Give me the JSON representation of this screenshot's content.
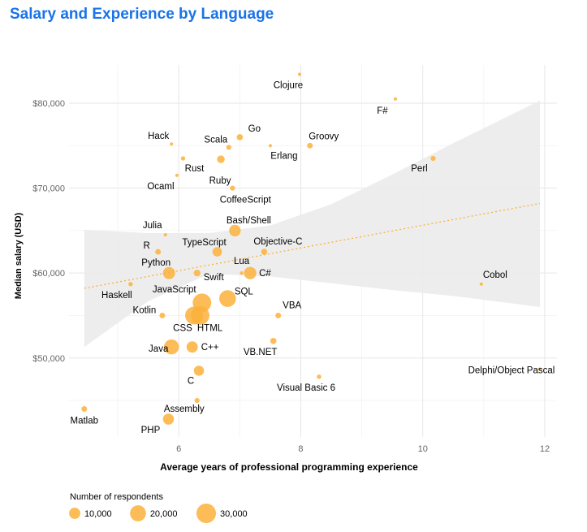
{
  "colors": {
    "title": "#1a73e8",
    "point": "#fbb03b",
    "trend": "#fbb03b",
    "band": "#ebebeb",
    "grid": "#e6e6e6",
    "axis_text": "#666666"
  },
  "chart_data": {
    "type": "scatter",
    "title": "Salary and Experience by Language",
    "xlabel": "Average years of professional programming experience",
    "ylabel": "Median salary (USD)",
    "xlim": [
      4.2,
      12.2
    ],
    "ylim": [
      40700,
      84500
    ],
    "x_ticks": [
      {
        "value": 6,
        "label": "6"
      },
      {
        "value": 8,
        "label": "8"
      },
      {
        "value": 10,
        "label": "10"
      },
      {
        "value": 12,
        "label": "12"
      }
    ],
    "y_ticks": [
      {
        "value": 50000,
        "label": "$50,000"
      },
      {
        "value": 60000,
        "label": "$60,000"
      },
      {
        "value": 70000,
        "label": "$70,000"
      },
      {
        "value": 80000,
        "label": "$80,000"
      }
    ],
    "grid": true,
    "trend": {
      "x": [
        4.45,
        11.92
      ],
      "y": [
        58200,
        68200
      ]
    },
    "band_upper": [
      [
        4.45,
        65100
      ],
      [
        5.5,
        64700
      ],
      [
        6.5,
        64700
      ],
      [
        7.5,
        65600
      ],
      [
        8.5,
        68100
      ],
      [
        9.5,
        71600
      ],
      [
        10.5,
        75300
      ],
      [
        11.92,
        80300
      ]
    ],
    "band_lower": [
      [
        4.45,
        51300
      ],
      [
        5.5,
        56700
      ],
      [
        6.5,
        59900
      ],
      [
        7.5,
        59600
      ],
      [
        8.5,
        58800
      ],
      [
        9.5,
        58000
      ],
      [
        10.5,
        57300
      ],
      [
        11.92,
        56000
      ]
    ],
    "points": [
      {
        "name": "Clojure",
        "x": 7.98,
        "y": 83400,
        "respondents": 700,
        "label_dx": -14,
        "label_dy": 17,
        "anchor": "middle"
      },
      {
        "name": "F#",
        "x": 9.55,
        "y": 80500,
        "respondents": 700,
        "label_dx": -16,
        "label_dy": 18,
        "anchor": "middle"
      },
      {
        "name": "Hack",
        "x": 5.88,
        "y": 75200,
        "respondents": 200,
        "label_dx": -16,
        "label_dy": -6,
        "anchor": "middle"
      },
      {
        "name": "Go",
        "x": 7.0,
        "y": 76000,
        "respondents": 3000,
        "label_dx": 18,
        "label_dy": -7,
        "anchor": "middle"
      },
      {
        "name": "Scala",
        "x": 6.82,
        "y": 74800,
        "respondents": 2000,
        "label_dx": -16,
        "label_dy": -6,
        "anchor": "middle"
      },
      {
        "name": "Groovy",
        "x": 8.15,
        "y": 75000,
        "respondents": 2500,
        "label_dx": 17,
        "label_dy": -8,
        "anchor": "middle"
      },
      {
        "name": "Erlang",
        "x": 7.5,
        "y": 75000,
        "respondents": 600,
        "label_dx": 17,
        "label_dy": 16,
        "anchor": "middle"
      },
      {
        "name": "Rust",
        "x": 6.07,
        "y": 73500,
        "respondents": 1500,
        "label_dx": 14,
        "label_dy": 16,
        "anchor": "middle"
      },
      {
        "name": "Perl",
        "x": 10.17,
        "y": 73500,
        "respondents": 2000,
        "label_dx": -17,
        "label_dy": 16,
        "anchor": "middle"
      },
      {
        "name": "Ruby",
        "x": 6.69,
        "y": 73400,
        "respondents": 4500,
        "label_dx": -1,
        "label_dy": 30,
        "anchor": "middle"
      },
      {
        "name": "Ocaml",
        "x": 5.97,
        "y": 71500,
        "respondents": 300,
        "label_dx": -20,
        "label_dy": 17,
        "anchor": "middle"
      },
      {
        "name": "CoffeeScript",
        "x": 6.88,
        "y": 70000,
        "respondents": 2000,
        "label_dx": 16,
        "label_dy": 18,
        "anchor": "middle"
      },
      {
        "name": "Bash/Shell",
        "x": 6.92,
        "y": 65000,
        "respondents": 10500,
        "label_dx": 17,
        "label_dy": -9,
        "anchor": "middle"
      },
      {
        "name": "Julia",
        "x": 5.78,
        "y": 64500,
        "respondents": 300,
        "label_dx": -16,
        "label_dy": -8,
        "anchor": "middle"
      },
      {
        "name": "R",
        "x": 5.66,
        "y": 62500,
        "respondents": 2500,
        "label_dx": -14,
        "label_dy": -4,
        "anchor": "middle"
      },
      {
        "name": "TypeScript",
        "x": 6.63,
        "y": 62500,
        "respondents": 7000,
        "label_dx": -16,
        "label_dy": -8,
        "anchor": "middle"
      },
      {
        "name": "Objective-C",
        "x": 7.4,
        "y": 62500,
        "respondents": 3000,
        "label_dx": 17,
        "label_dy": -9,
        "anchor": "middle"
      },
      {
        "name": "Python",
        "x": 5.84,
        "y": 60000,
        "respondents": 11500,
        "label_dx": -16,
        "label_dy": -9,
        "anchor": "middle"
      },
      {
        "name": "Lua",
        "x": 7.03,
        "y": 60000,
        "respondents": 1000,
        "label_dx": 0,
        "label_dy": -11,
        "anchor": "middle"
      },
      {
        "name": "C#",
        "x": 7.17,
        "y": 60000,
        "respondents": 12000,
        "label_dx": 11,
        "label_dy": 4,
        "anchor": "start"
      },
      {
        "name": "Swift",
        "x": 6.3,
        "y": 60000,
        "respondents": 3500,
        "label_dx": 8,
        "label_dy": 9,
        "anchor": "start"
      },
      {
        "name": "Cobol",
        "x": 10.96,
        "y": 58700,
        "respondents": 500,
        "label_dx": 17,
        "label_dy": -8,
        "anchor": "middle"
      },
      {
        "name": "Haskell",
        "x": 5.21,
        "y": 58700,
        "respondents": 1500,
        "label_dx": -17,
        "label_dy": 17,
        "anchor": "middle"
      },
      {
        "name": "SQL",
        "x": 6.8,
        "y": 57000,
        "respondents": 22000,
        "label_dx": 20,
        "label_dy": -5,
        "anchor": "middle"
      },
      {
        "name": "JavaScript",
        "x": 6.38,
        "y": 56500,
        "respondents": 27000,
        "label_dx": -34,
        "label_dy": -13,
        "anchor": "middle"
      },
      {
        "name": "VBA",
        "x": 7.63,
        "y": 55000,
        "respondents": 2500,
        "label_dx": 17,
        "label_dy": -9,
        "anchor": "middle"
      },
      {
        "name": "Kotlin",
        "x": 5.73,
        "y": 55000,
        "respondents": 2500,
        "label_dx": -22,
        "label_dy": -3,
        "anchor": "middle"
      },
      {
        "name": "CSS",
        "x": 6.25,
        "y": 55000,
        "respondents": 25000,
        "label_dx": -14,
        "label_dy": 19,
        "anchor": "middle"
      },
      {
        "name": "HTML",
        "x": 6.35,
        "y": 55000,
        "respondents": 27000,
        "label_dx": 12,
        "label_dy": 19,
        "anchor": "middle"
      },
      {
        "name": "Java",
        "x": 5.88,
        "y": 51300,
        "respondents": 17500,
        "label_dx": -16,
        "label_dy": 6,
        "anchor": "middle"
      },
      {
        "name": "C++",
        "x": 6.22,
        "y": 51300,
        "respondents": 10000,
        "label_dx": 11,
        "label_dy": 4,
        "anchor": "start"
      },
      {
        "name": "VB.NET",
        "x": 7.55,
        "y": 52000,
        "respondents": 3000,
        "label_dx": -16,
        "label_dy": 17,
        "anchor": "middle"
      },
      {
        "name": "C",
        "x": 6.33,
        "y": 48500,
        "respondents": 8000,
        "label_dx": -10,
        "label_dy": 16,
        "anchor": "middle"
      },
      {
        "name": "Delphi/Object Pascal",
        "x": 11.92,
        "y": 48700,
        "respondents": 800,
        "label_dx": -35,
        "label_dy": 5,
        "anchor": "middle"
      },
      {
        "name": "Visual Basic 6",
        "x": 8.3,
        "y": 47800,
        "respondents": 1500,
        "label_dx": -16,
        "label_dy": 17,
        "anchor": "middle"
      },
      {
        "name": "Assembly",
        "x": 6.3,
        "y": 45000,
        "respondents": 2000,
        "label_dx": -16,
        "label_dy": 14,
        "anchor": "middle"
      },
      {
        "name": "Matlab",
        "x": 4.45,
        "y": 44000,
        "respondents": 2500,
        "label_dx": 0,
        "label_dy": 18,
        "anchor": "middle"
      },
      {
        "name": "PHP",
        "x": 5.83,
        "y": 42800,
        "respondents": 9500,
        "label_dx": -22,
        "label_dy": 17,
        "anchor": "middle"
      }
    ],
    "size_legend": {
      "title": "Number of respondents",
      "entries": [
        {
          "value": 10000,
          "label": "10,000"
        },
        {
          "value": 20000,
          "label": "20,000"
        },
        {
          "value": 30000,
          "label": "30,000"
        }
      ]
    }
  }
}
